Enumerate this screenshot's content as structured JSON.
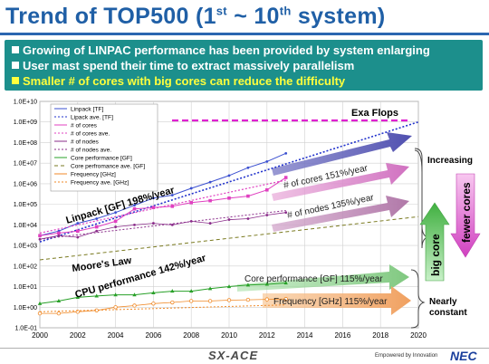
{
  "title": {
    "main": "Trend of TOP500 (1",
    "sup1": "st",
    "mid": " ~ 10",
    "sup2": "th",
    "end": " system)"
  },
  "bullets": [
    "Growing of LINPAC performance has been provided by system enlarging",
    "User mast spend their time to extract massively parallelism",
    "Smaller # of cores with big cores can reduce the difficulty"
  ],
  "colors": {
    "title": "#1f5fa6",
    "banner": "#1c8f8c",
    "highlight": "#ffff3c"
  },
  "chart_data": {
    "type": "line",
    "yscale": "log",
    "ylim": [
      "1.0E-01",
      "1.0E+10"
    ],
    "xlim": [
      2000,
      2020
    ],
    "x_ticks": [
      "2000",
      "2002",
      "2004",
      "2006",
      "2008",
      "2010",
      "2012",
      "2014",
      "2016",
      "2018",
      "2020"
    ],
    "y_ticks": [
      "1.0E+10",
      "1.0E+09",
      "1.0E+08",
      "1.0E+07",
      "1.0E+06",
      "1.0E+05",
      "1.0E+04",
      "1.0E+03",
      "1.0E+02",
      "1.0E+01",
      "1.0E+00",
      "1.0E-01"
    ],
    "grid": true,
    "legend_position": "top-left",
    "legend": [
      "Linpack [TF]",
      "Lipack ave. [TF]",
      "# of cores",
      "# of cores ave.",
      "# of nodes",
      "# of nodes ave.",
      "Core performance [GF]",
      "Core perfromance ave. [GF]",
      "Frequency [GHz]",
      "Frequency ave. [GHz]"
    ],
    "series": [
      {
        "name": "Linpack [TF]",
        "color": "#3a4fd0",
        "x": [
          2000,
          2001,
          2002,
          2003,
          2004,
          2005,
          2006,
          2007,
          2008,
          2009,
          2010,
          2011,
          2012,
          2013
        ],
        "y": [
          3000,
          5000,
          12000,
          20000,
          40000,
          90000,
          200000,
          280000,
          600000,
          1200000,
          2500000,
          6000000,
          12000000,
          30000000
        ]
      },
      {
        "name": "Lipack ave. [TF]",
        "color": "#2233cc",
        "x": [
          2000,
          2020
        ],
        "y": [
          1500,
          1000000000
        ]
      },
      {
        "name": "# of cores",
        "color": "#e040c0",
        "x": [
          2000,
          2001,
          2002,
          2003,
          2004,
          2005,
          2006,
          2007,
          2008,
          2009,
          2010,
          2011,
          2012,
          2013
        ],
        "y": [
          3000,
          4000,
          5000,
          8000,
          15000,
          60000,
          70000,
          80000,
          120000,
          150000,
          200000,
          250000,
          500000,
          2000000
        ]
      },
      {
        "name": "# of cores ave.",
        "color": "#e040c0",
        "x": [
          2000,
          2013
        ],
        "y": [
          4000,
          1500000
        ]
      },
      {
        "name": "# of nodes",
        "color": "#8a2c8a",
        "x": [
          2000,
          2001,
          2002,
          2003,
          2004,
          2005,
          2006,
          2007,
          2008,
          2009,
          2010,
          2011,
          2012,
          2013
        ],
        "y": [
          2000,
          3000,
          2500,
          5000,
          8000,
          10000,
          12000,
          10000,
          15000,
          12000,
          18000,
          20000,
          30000,
          40000
        ]
      },
      {
        "name": "# of nodes ave.",
        "color": "#8a2c8a",
        "x": [
          2000,
          2013
        ],
        "y": [
          2000,
          50000
        ]
      },
      {
        "name": "Core performance [GF]",
        "color": "#28a028",
        "x": [
          2000,
          2001,
          2002,
          2003,
          2004,
          2005,
          2006,
          2007,
          2008,
          2009,
          2010,
          2011,
          2012,
          2013
        ],
        "y": [
          1.5,
          2,
          3,
          3.5,
          4,
          4,
          5,
          6,
          6,
          8,
          10,
          12,
          13,
          15
        ]
      },
      {
        "name": "Core perfromance ave. [GF]",
        "color": "#7a7a20",
        "x": [
          2000,
          2020
        ],
        "y": [
          200,
          25000
        ]
      },
      {
        "name": "Frequency [GHz]",
        "color": "#f08a28",
        "x": [
          2000,
          2001,
          2002,
          2003,
          2004,
          2005,
          2006,
          2007,
          2008,
          2009,
          2010,
          2011,
          2012,
          2013
        ],
        "y": [
          0.5,
          0.5,
          0.6,
          0.7,
          1,
          1.2,
          1.5,
          1.7,
          2,
          2,
          2.2,
          2.3,
          2.4,
          2.5
        ]
      },
      {
        "name": "Frequency ave. [GHz]",
        "color": "#f08a28",
        "x": [
          2000,
          2013
        ],
        "y": [
          0.6,
          1.3
        ]
      }
    ],
    "annotations": {
      "exa": "Exa Flops",
      "linpack": "Linpack [GF] 198%/year",
      "cores": "# of cores 151%/year",
      "nodes": "# of nodes 135%/year",
      "moore": "Moore's Law",
      "cpu": "CPU performance 142%/year",
      "core_perf": "Core performance [GF] 115%/year",
      "freq": "Frequency [GHz] 115%/year",
      "increasing": "Increasing",
      "nearly1": "Nearly",
      "nearly2": "constant",
      "big_core": "big core",
      "fewer_cores": "fewer cores"
    }
  },
  "footer": {
    "logo": "SX-ACE",
    "tagline": "Empowered by Innovation",
    "brand": "NEC"
  }
}
